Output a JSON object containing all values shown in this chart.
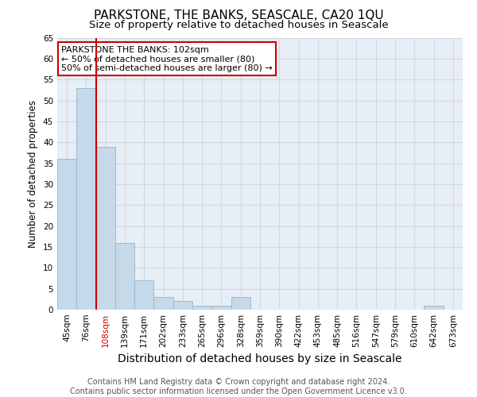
{
  "title": "PARKSTONE, THE BANKS, SEASCALE, CA20 1QU",
  "subtitle": "Size of property relative to detached houses in Seascale",
  "xlabel": "Distribution of detached houses by size in Seascale",
  "ylabel": "Number of detached properties",
  "categories": [
    "45sqm",
    "76sqm",
    "108sqm",
    "139sqm",
    "171sqm",
    "202sqm",
    "233sqm",
    "265sqm",
    "296sqm",
    "328sqm",
    "359sqm",
    "390sqm",
    "422sqm",
    "453sqm",
    "485sqm",
    "516sqm",
    "547sqm",
    "579sqm",
    "610sqm",
    "642sqm",
    "673sqm"
  ],
  "values": [
    36,
    53,
    39,
    16,
    7,
    3,
    2,
    1,
    1,
    3,
    0,
    0,
    0,
    0,
    0,
    0,
    0,
    0,
    0,
    1,
    0
  ],
  "bar_color": "#c6d9e8",
  "bar_edge_color": "#9abcd0",
  "vline_color": "#cc0000",
  "vline_x_idx": 2,
  "ylim": [
    0,
    65
  ],
  "yticks": [
    0,
    5,
    10,
    15,
    20,
    25,
    30,
    35,
    40,
    45,
    50,
    55,
    60,
    65
  ],
  "annotation_title": "PARKSTONE THE BANKS: 102sqm",
  "annotation_line2": "← 50% of detached houses are smaller (80)",
  "annotation_line3": "50% of semi-detached houses are larger (80) →",
  "annotation_box_color": "#ffffff",
  "annotation_edge_color": "#cc0000",
  "footer_line1": "Contains HM Land Registry data © Crown copyright and database right 2024.",
  "footer_line2": "Contains public sector information licensed under the Open Government Licence v3.0.",
  "grid_color": "#cdd8e8",
  "bg_color": "#e8eef5",
  "fig_bg_color": "#ffffff",
  "title_fontsize": 11,
  "subtitle_fontsize": 9.5,
  "xlabel_fontsize": 10,
  "ylabel_fontsize": 8.5,
  "tick_fontsize": 7.5,
  "ann_fontsize": 8,
  "footer_fontsize": 7
}
